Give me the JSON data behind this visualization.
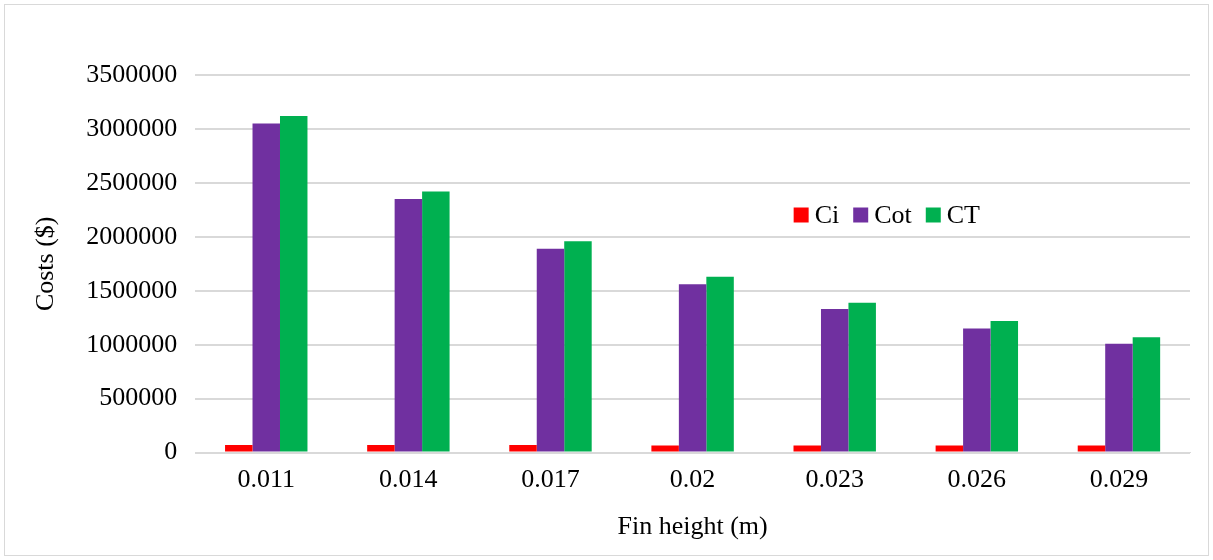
{
  "chart_data": {
    "type": "bar",
    "xlabel": "Fin height (m)",
    "ylabel": "Costs ($)",
    "categories": [
      "0.011",
      "0.014",
      "0.017",
      "0.02",
      "0.023",
      "0.026",
      "0.029"
    ],
    "series": [
      {
        "name": "Ci",
        "color": "#ff0000",
        "values": [
          70000,
          70000,
          70000,
          65000,
          65000,
          65000,
          65000
        ]
      },
      {
        "name": "Cot",
        "color": "#7030a0",
        "values": [
          3050000,
          2350000,
          1890000,
          1560000,
          1330000,
          1150000,
          1010000
        ]
      },
      {
        "name": "CT",
        "color": "#00b050",
        "values": [
          3120000,
          2420000,
          1960000,
          1630000,
          1390000,
          1220000,
          1070000
        ]
      }
    ],
    "ylim": [
      0,
      3500000
    ],
    "yticks": [
      0,
      500000,
      1000000,
      1500000,
      2000000,
      2500000,
      3000000,
      3500000
    ],
    "grid": "y",
    "legend": "top right"
  }
}
